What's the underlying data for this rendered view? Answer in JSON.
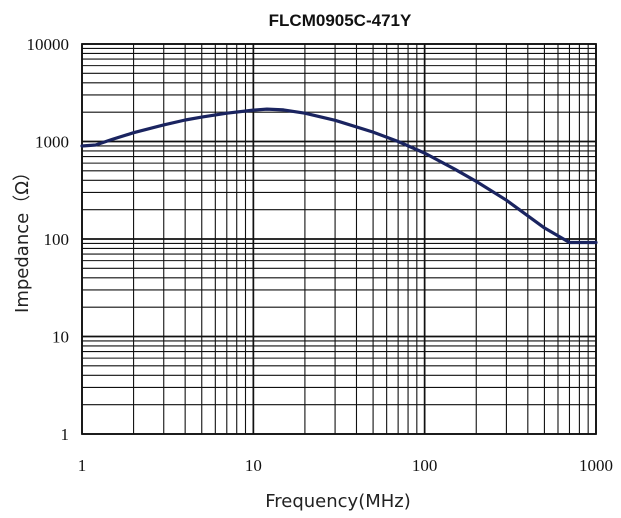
{
  "chart_data": {
    "type": "line",
    "title": "FLCM0905C-471Y",
    "xlabel": "Frequency(MHz)",
    "ylabel": "Impedance（Ω）",
    "x_scale": "log",
    "y_scale": "log",
    "xlim": [
      1,
      1000
    ],
    "ylim": [
      1,
      10000
    ],
    "x_ticks": [
      "1",
      "10",
      "100",
      "1000"
    ],
    "y_ticks": [
      "1",
      "10",
      "100",
      "1000",
      "10000"
    ],
    "grid": true,
    "series": [
      {
        "color": "#1a2460",
        "x": [
          1,
          1.2,
          1.5,
          2,
          3,
          4,
          5,
          7,
          10,
          12,
          15,
          20,
          30,
          50,
          70,
          100,
          150,
          200,
          300,
          500,
          700,
          800,
          1000
        ],
        "y": [
          900,
          920,
          1050,
          1230,
          1480,
          1660,
          1780,
          1950,
          2100,
          2150,
          2110,
          1950,
          1650,
          1250,
          1000,
          760,
          520,
          390,
          250,
          130,
          92,
          92,
          92
        ]
      }
    ]
  }
}
